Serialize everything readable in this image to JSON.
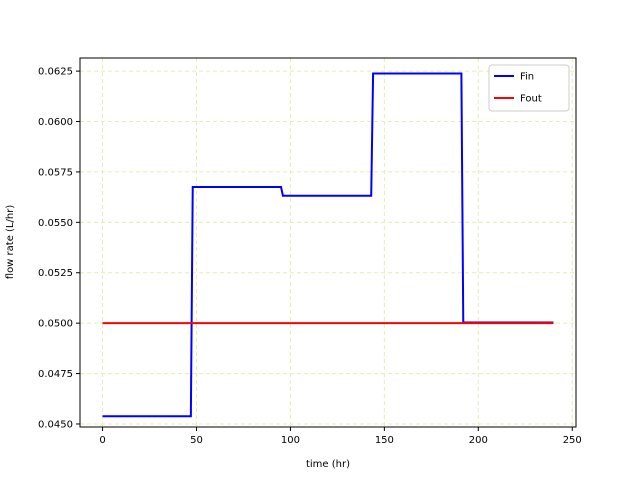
{
  "chart_data": {
    "type": "line",
    "title": "",
    "xlabel": "time (hr)",
    "ylabel": "flow rate (L/hr)",
    "xlim": [
      -12,
      252
    ],
    "ylim": [
      0.04485,
      0.06315
    ],
    "xticks": [
      0,
      50,
      100,
      150,
      200,
      250
    ],
    "xtick_labels": [
      "0",
      "50",
      "100",
      "150",
      "200",
      "250"
    ],
    "yticks": [
      0.045,
      0.0475,
      0.05,
      0.0525,
      0.055,
      0.0575,
      0.06,
      0.0625
    ],
    "ytick_labels": [
      "0.0450",
      "0.0475",
      "0.0500",
      "0.0525",
      "0.0550",
      "0.0575",
      "0.0600",
      "0.0625"
    ],
    "grid": true,
    "grid_color": "#e8ecb4",
    "legend_position": "top-right",
    "series": [
      {
        "name": "Fin",
        "color": "#0000ff",
        "x": [
          0,
          47,
          48,
          95,
          96,
          143,
          144,
          191,
          192,
          240
        ],
        "y": [
          0.04538,
          0.04538,
          0.05675,
          0.05675,
          0.05632,
          0.05632,
          0.06238,
          0.06238,
          0.05003,
          0.05003
        ]
      },
      {
        "name": "Fout",
        "color": "#ff0000",
        "x": [
          0,
          240
        ],
        "y": [
          0.05,
          0.05
        ]
      }
    ]
  }
}
